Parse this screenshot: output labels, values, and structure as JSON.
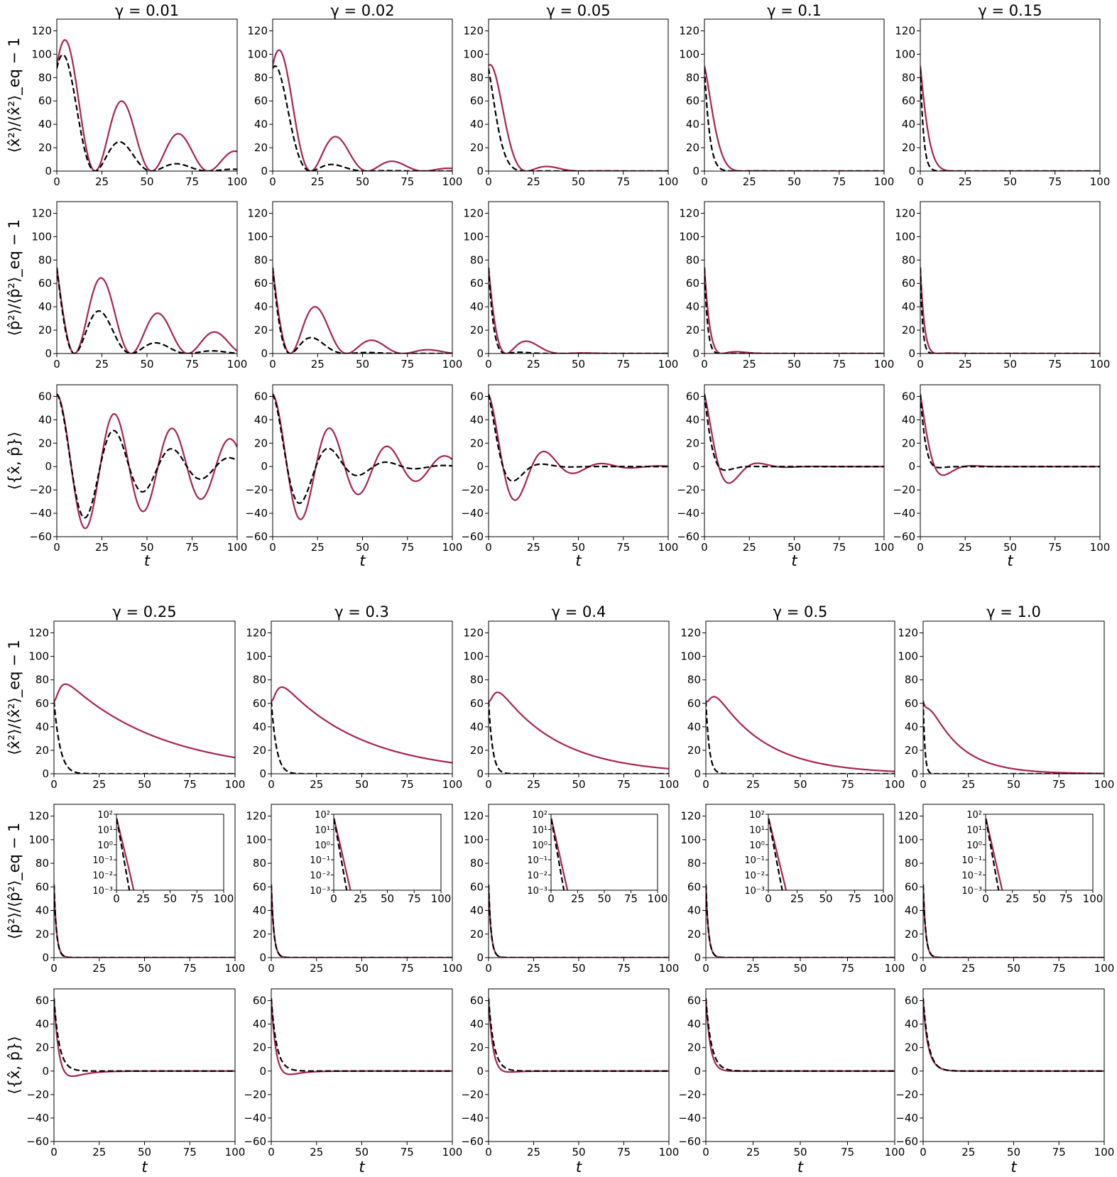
{
  "chart_data": {
    "type": "line",
    "colors": {
      "solid": "#a8244f",
      "dashed": "#000000"
    },
    "series_styles": [
      "solid",
      "dashed"
    ],
    "blocks": [
      {
        "gammas": [
          0.01,
          0.02,
          0.05,
          0.1,
          0.15
        ],
        "titles": [
          "γ = 0.01",
          "γ = 0.02",
          "γ = 0.05",
          "γ = 0.1",
          "γ = 0.15"
        ],
        "rows": [
          {
            "quantity": "x2",
            "ylabel": "⟨x̂²⟩/⟨x̂²⟩_eq − 1",
            "ylim": [
              0,
              130
            ],
            "yticks": [
              0,
              20,
              40,
              60,
              80,
              100,
              120
            ],
            "inset": false
          },
          {
            "quantity": "p2",
            "ylabel": "⟨p̂²⟩/⟨p̂²⟩_eq − 1",
            "ylim": [
              0,
              130
            ],
            "yticks": [
              0,
              20,
              40,
              60,
              80,
              100,
              120
            ],
            "inset": false
          },
          {
            "quantity": "xp",
            "ylabel": "⟨{x̂, p̂}⟩",
            "ylim": [
              -60,
              70
            ],
            "yticks": [
              -60,
              -40,
              -20,
              0,
              20,
              40,
              60
            ],
            "inset": false
          }
        ]
      },
      {
        "gammas": [
          0.25,
          0.3,
          0.4,
          0.5,
          1.0
        ],
        "titles": [
          "γ = 0.25",
          "γ = 0.3",
          "γ = 0.4",
          "γ = 0.5",
          "γ = 1.0"
        ],
        "rows": [
          {
            "quantity": "x2",
            "ylabel": "⟨x̂²⟩/⟨x̂²⟩_eq − 1",
            "ylim": [
              0,
              130
            ],
            "yticks": [
              0,
              20,
              40,
              60,
              80,
              100,
              120
            ],
            "inset": false
          },
          {
            "quantity": "p2",
            "ylabel": "⟨p̂²⟩/⟨p̂²⟩_eq − 1",
            "ylim": [
              0,
              130
            ],
            "yticks": [
              0,
              20,
              40,
              60,
              80,
              100,
              120
            ],
            "inset": true
          },
          {
            "quantity": "xp",
            "ylabel": "⟨{x̂, p̂}⟩",
            "ylim": [
              -60,
              70
            ],
            "yticks": [
              -60,
              -40,
              -20,
              0,
              20,
              40,
              60
            ],
            "inset": false
          }
        ]
      }
    ],
    "xlim": [
      0,
      100
    ],
    "xticks": [
      0,
      25,
      50,
      75,
      100
    ],
    "xlabel": "t",
    "inset": {
      "scale": "log",
      "ylim_exp": [
        -3,
        2
      ],
      "yticks": [
        "10²",
        "10¹",
        "10⁰",
        "10⁻¹",
        "10⁻²",
        "10⁻³"
      ],
      "xticks": [
        0,
        25,
        50,
        75,
        100
      ]
    },
    "grid": false,
    "legend": "none"
  }
}
